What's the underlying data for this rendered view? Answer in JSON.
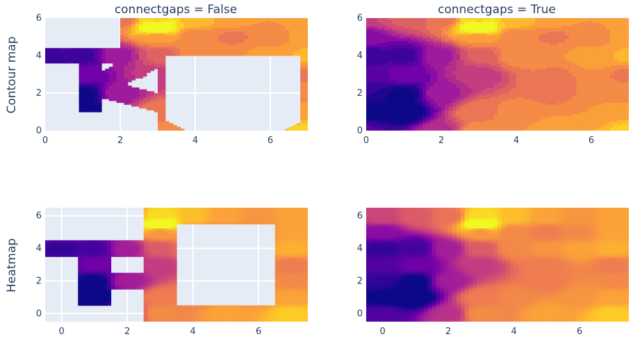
{
  "colors": {
    "plot_bg": "#E5ECF6",
    "grid": "#ffffff",
    "text": "#2a3f5f",
    "colorscale": [
      "#0d0887",
      "#46039f",
      "#7201a8",
      "#9c179e",
      "#bd3786",
      "#d8576b",
      "#ed7953",
      "#fb9f3a",
      "#fdca26",
      "#f0f921"
    ]
  },
  "row_labels": [
    "Contour map",
    "Heatmap"
  ],
  "chart_data": [
    {
      "type": "contour",
      "row": "Contour map",
      "title": "connectgaps = False",
      "connectgaps": false,
      "x_ticks": [
        "0",
        "2",
        "4",
        "6"
      ],
      "y_ticks": [
        "0",
        "2",
        "4",
        "6"
      ],
      "xlim": [
        0,
        7
      ],
      "ylim": [
        0,
        6
      ],
      "z": [
        [
          null,
          null,
          null,
          10.125,
          null,
          null,
          null,
          12.5
        ],
        [
          null,
          1,
          null,
          9.5,
          null,
          null,
          null,
          11
        ],
        [
          null,
          2,
          null,
          null,
          null,
          null,
          null,
          10
        ],
        [
          null,
          3,
          null,
          6.5,
          null,
          null,
          null,
          9.5
        ],
        [
          1,
          1.5,
          5,
          8,
          10,
          10.5,
          11,
          11.5
        ],
        [
          null,
          null,
          null,
          10.5,
          10,
          9.5,
          10,
          11
        ],
        [
          null,
          null,
          null,
          13,
          12,
          11,
          10.5,
          11
        ]
      ]
    },
    {
      "type": "contour",
      "row": "Contour map",
      "title": "connectgaps = True",
      "connectgaps": true,
      "x_ticks": [
        "0",
        "2",
        "4",
        "6"
      ],
      "y_ticks": [
        "0",
        "2",
        "4",
        "6"
      ],
      "xlim": [
        0,
        7
      ],
      "ylim": [
        0,
        6
      ]
    },
    {
      "type": "heatmap",
      "row": "Heatmap",
      "title": "",
      "connectgaps": false,
      "x_ticks": [
        "0",
        "2",
        "4",
        "6"
      ],
      "y_ticks": [
        "0",
        "2",
        "4",
        "6"
      ],
      "xlim": [
        -0.5,
        7.5
      ],
      "ylim": [
        -0.5,
        6.5
      ]
    },
    {
      "type": "heatmap",
      "row": "Heatmap",
      "title": "",
      "connectgaps": true,
      "x_ticks": [
        "0",
        "2",
        "4",
        "6"
      ],
      "y_ticks": [
        "0",
        "2",
        "4",
        "6"
      ],
      "xlim": [
        -0.5,
        7.5
      ],
      "ylim": [
        -0.5,
        6.5
      ]
    }
  ]
}
